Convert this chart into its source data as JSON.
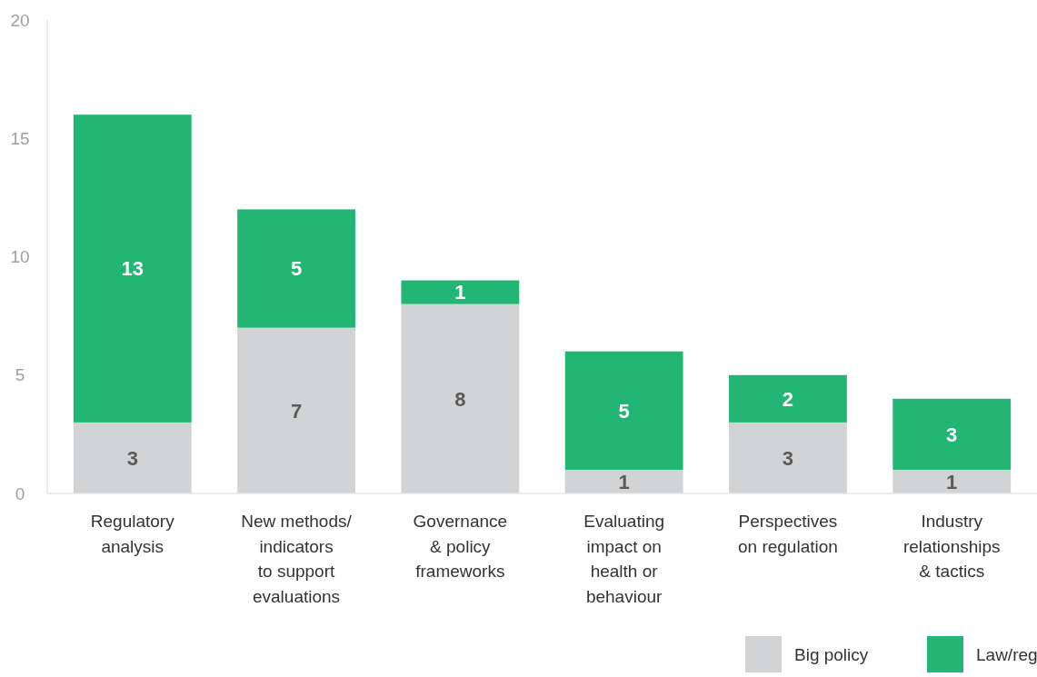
{
  "chart_data": {
    "type": "bar",
    "stacked": true,
    "categories": [
      "Regulatory\nanalysis",
      "New methods/\nindicators\nto support\nevaluations",
      "Governance\n& policy\nframeworks",
      "Evaluating\nimpact on\nhealth or\nbehaviour",
      "Perspectives\non regulation",
      "Industry\nrelationships\n& tactics"
    ],
    "series": [
      {
        "name": "Big policy",
        "color": "#d1d3d4",
        "values": [
          3,
          7,
          8,
          1,
          3,
          1
        ]
      },
      {
        "name": "Law/reg",
        "color": "#22b573",
        "values": [
          13,
          5,
          1,
          5,
          2,
          3
        ]
      }
    ],
    "ylim": [
      0,
      20
    ],
    "yticks": [
      0,
      5,
      10,
      15,
      20
    ],
    "grid": false,
    "legend": "bottom right",
    "data_labels": true
  }
}
